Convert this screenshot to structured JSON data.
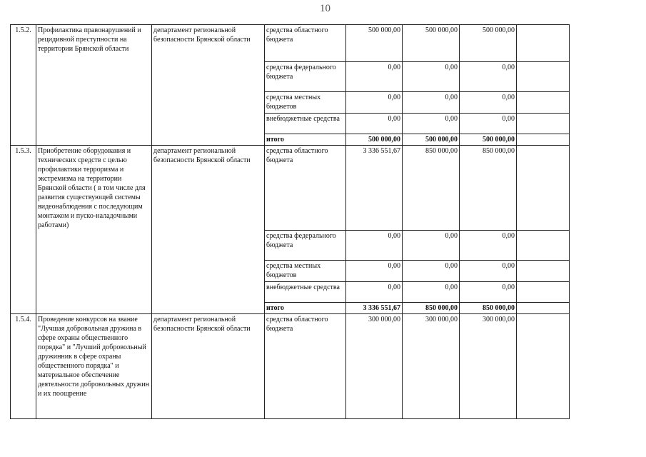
{
  "page_number": "10",
  "rows": [
    {
      "index": "1.5.2.",
      "name": "Профилактика правонарушений и рецидивной преступности на территории Брянской области",
      "executor": "департамент региональной безопасности Брянской области",
      "sources": [
        {
          "label": "средства областного бюджета",
          "v1": "500 000,00",
          "v2": "500 000,00",
          "v3": "500 000,00"
        },
        {
          "label": "средства федерального бюджета",
          "v1": "0,00",
          "v2": "0,00",
          "v3": "0,00"
        },
        {
          "label": "средства местных бюджетов",
          "v1": "0,00",
          "v2": "0,00",
          "v3": "0,00"
        },
        {
          "label": "внебюджетные средства",
          "v1": "0,00",
          "v2": "0,00",
          "v3": "0,00"
        },
        {
          "label": "итого",
          "v1": "500 000,00",
          "v2": "500 000,00",
          "v3": "500 000,00"
        }
      ]
    },
    {
      "index": "1.5.3.",
      "name": "Приобретение оборудования и технических средств с целью профилактики терроризма и экстремизма на территории Брянской области ( в том числе для развития существующей системы видеонаблюдения с последующим монтажом и пуско-наладочными работами)",
      "executor": "департамент региональной безопасности Брянской области",
      "sources": [
        {
          "label": "средства областного бюджета",
          "v1": "3 336 551,67",
          "v2": "850 000,00",
          "v3": "850 000,00"
        },
        {
          "label": "средства федерального бюджета",
          "v1": "0,00",
          "v2": "0,00",
          "v3": "0,00"
        },
        {
          "label": "средства местных бюджетов",
          "v1": "0,00",
          "v2": "0,00",
          "v3": "0,00"
        },
        {
          "label": "внебюджетные средства",
          "v1": "0,00",
          "v2": "0,00",
          "v3": "0,00"
        },
        {
          "label": "итого",
          "v1": "3 336 551,67",
          "v2": "850 000,00",
          "v3": "850 000,00"
        }
      ]
    },
    {
      "index": "1.5.4.",
      "name": "Проведение конкурсов на звание \"Лучшая добровольная дружина в сфере охраны общественного порядка\" и \"Лучший добровольный дружинник в сфере охраны общественного порядка\" и материальное обеспечение деятельности добровольных дружин и их поощрение",
      "executor": "департамент региональной безопасности Брянской области",
      "sources": [
        {
          "label": "средства областного бюджета",
          "v1": "300 000,00",
          "v2": "300 000,00",
          "v3": "300 000,00"
        }
      ]
    }
  ]
}
